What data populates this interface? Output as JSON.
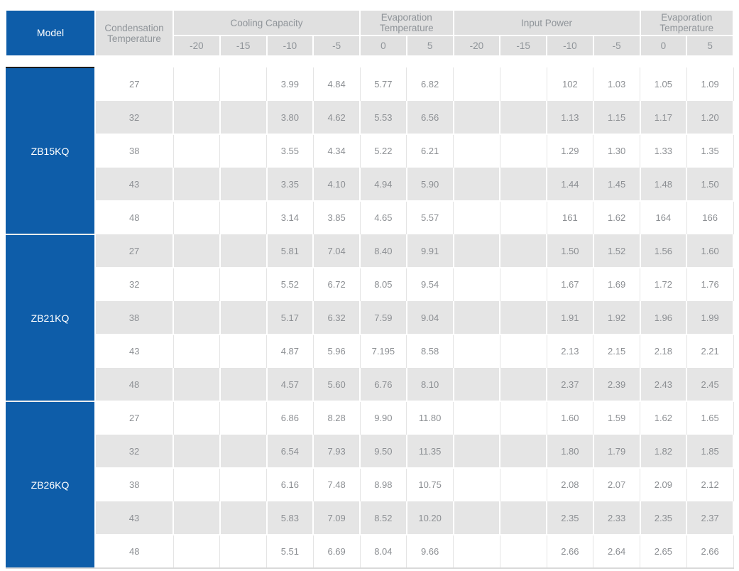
{
  "colors": {
    "brand_blue": "#0e5da9",
    "header_gray": "#e0e0e0",
    "row_alt_gray": "#e5e5e5",
    "text_gray": "#8c8f93",
    "model_text_white": "#ffffff",
    "dark_divider": "#1b1b1b"
  },
  "table": {
    "header": {
      "model": "Model",
      "condensation": "Condensation Temperature",
      "groups": [
        {
          "label": "Cooling Capacity"
        },
        {
          "label": "Evaporation Temperature"
        },
        {
          "label": "Input Power"
        },
        {
          "label": "Evaporation Temperature"
        }
      ],
      "sub_columns": [
        "-20",
        "-15",
        "-10",
        "-5",
        "0",
        "5",
        "-20",
        "-15",
        "-10",
        "-5",
        "0",
        "5"
      ]
    },
    "blocks": [
      {
        "model": "ZB15KQ",
        "rows": [
          {
            "condensation": "27",
            "values": [
              "",
              "",
              "3.99",
              "4.84",
              "5.77",
              "6.82",
              "",
              "",
              "102",
              "1.03",
              "1.05",
              "1.09"
            ]
          },
          {
            "condensation": "32",
            "values": [
              "",
              "",
              "3.80",
              "4.62",
              "5.53",
              "6.56",
              "",
              "",
              "1.13",
              "1.15",
              "1.17",
              "1.20"
            ]
          },
          {
            "condensation": "38",
            "values": [
              "",
              "",
              "3.55",
              "4.34",
              "5.22",
              "6.21",
              "",
              "",
              "1.29",
              "1.30",
              "1.33",
              "1.35"
            ]
          },
          {
            "condensation": "43",
            "values": [
              "",
              "",
              "3.35",
              "4.10",
              "4.94",
              "5.90",
              "",
              "",
              "1.44",
              "1.45",
              "1.48",
              "1.50"
            ]
          },
          {
            "condensation": "48",
            "values": [
              "",
              "",
              "3.14",
              "3.85",
              "4.65",
              "5.57",
              "",
              "",
              "161",
              "1.62",
              "164",
              "166"
            ]
          }
        ]
      },
      {
        "model": "ZB21KQ",
        "rows": [
          {
            "condensation": "27",
            "values": [
              "",
              "",
              "5.81",
              "7.04",
              "8.40",
              "9.91",
              "",
              "",
              "1.50",
              "1.52",
              "1.56",
              "1.60"
            ]
          },
          {
            "condensation": "32",
            "values": [
              "",
              "",
              "5.52",
              "6.72",
              "8.05",
              "9.54",
              "",
              "",
              "1.67",
              "1.69",
              "1.72",
              "1.76"
            ]
          },
          {
            "condensation": "38",
            "values": [
              "",
              "",
              "5.17",
              "6.32",
              "7.59",
              "9.04",
              "",
              "",
              "1.91",
              "1.92",
              "1.96",
              "1.99"
            ]
          },
          {
            "condensation": "43",
            "values": [
              "",
              "",
              "4.87",
              "5.96",
              "7.195",
              "8.58",
              "",
              "",
              "2.13",
              "2.15",
              "2.18",
              "2.21"
            ]
          },
          {
            "condensation": "48",
            "values": [
              "",
              "",
              "4.57",
              "5.60",
              "6.76",
              "8.10",
              "",
              "",
              "2.37",
              "2.39",
              "2.43",
              "2.45"
            ]
          }
        ]
      },
      {
        "model": "ZB26KQ",
        "rows": [
          {
            "condensation": "27",
            "values": [
              "",
              "",
              "6.86",
              "8.28",
              "9.90",
              "11.80",
              "",
              "",
              "1.60",
              "1.59",
              "1.62",
              "1.65"
            ]
          },
          {
            "condensation": "32",
            "values": [
              "",
              "",
              "6.54",
              "7.93",
              "9.50",
              "11.35",
              "",
              "",
              "1.80",
              "1.79",
              "1.82",
              "1.85"
            ]
          },
          {
            "condensation": "38",
            "values": [
              "",
              "",
              "6.16",
              "7.48",
              "8.98",
              "10.75",
              "",
              "",
              "2.08",
              "2.07",
              "2.09",
              "2.12"
            ]
          },
          {
            "condensation": "43",
            "values": [
              "",
              "",
              "5.83",
              "7.09",
              "8.52",
              "10.20",
              "",
              "",
              "2.35",
              "2.33",
              "2.35",
              "2.37"
            ]
          },
          {
            "condensation": "48",
            "values": [
              "",
              "",
              "5.51",
              "6.69",
              "8.04",
              "9.66",
              "",
              "",
              "2.66",
              "2.64",
              "2.65",
              "2.66"
            ]
          }
        ]
      }
    ]
  }
}
